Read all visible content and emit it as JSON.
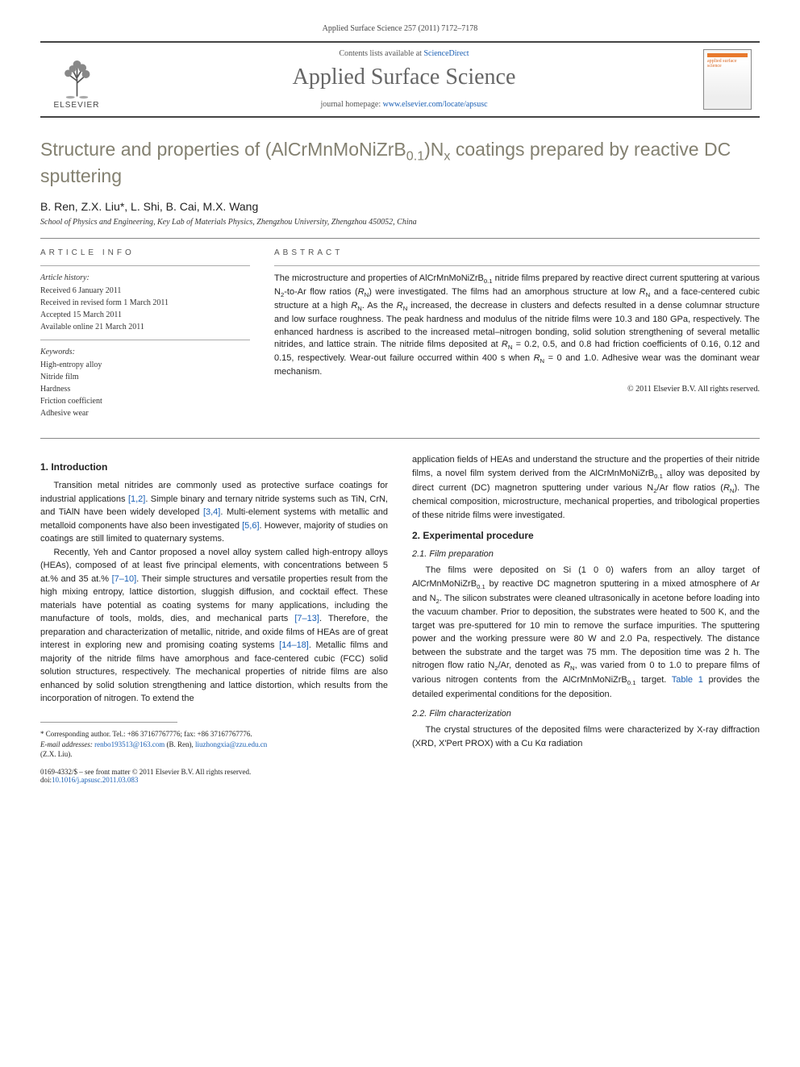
{
  "header": {
    "citation": "Applied Surface Science 257 (2011) 7172–7178",
    "contents_prefix": "Contents lists available at ",
    "contents_link": "ScienceDirect",
    "journal": "Applied Surface Science",
    "homepage_prefix": "journal homepage: ",
    "homepage_url": "www.elsevier.com/locate/apsusc",
    "publisher": "ELSEVIER",
    "cover_text": "applied surface science"
  },
  "title_html": "Structure and properties of (AlCrMnMoNiZrB<sub>0.1</sub>)N<sub>x</sub> coatings prepared by reactive DC sputtering",
  "authors": "B. Ren, Z.X. Liu*, L. Shi, B. Cai, M.X. Wang",
  "affiliation": "School of Physics and Engineering, Key Lab of Materials Physics, Zhengzhou University, Zhengzhou 450052, China",
  "article_info": {
    "label": "article info",
    "history_heading": "Article history:",
    "received": "Received 6 January 2011",
    "revised": "Received in revised form 1 March 2011",
    "accepted": "Accepted 15 March 2011",
    "online": "Available online 21 March 2011",
    "keywords_heading": "Keywords:",
    "keywords": [
      "High-entropy alloy",
      "Nitride film",
      "Hardness",
      "Friction coefficient",
      "Adhesive wear"
    ]
  },
  "abstract": {
    "label": "abstract",
    "text_html": "The microstructure and properties of AlCrMnMoNiZrB<sub>0.1</sub> nitride films prepared by reactive direct current sputtering at various N<sub>2</sub>-to-Ar flow ratios (<i>R</i><sub>N</sub>) were investigated. The films had an amorphous structure at low <i>R</i><sub>N</sub> and a face-centered cubic structure at a high <i>R</i><sub>N</sub>. As the <i>R</i><sub>N</sub> increased, the decrease in clusters and defects resulted in a dense columnar structure and low surface roughness. The peak hardness and modulus of the nitride films were 10.3 and 180 GPa, respectively. The enhanced hardness is ascribed to the increased metal–nitrogen bonding, solid solution strengthening of several metallic nitrides, and lattice strain. The nitride films deposited at <i>R</i><sub>N</sub> = 0.2, 0.5, and 0.8 had friction coefficients of 0.16, 0.12 and 0.15, respectively. Wear-out failure occurred within 400 s when <i>R</i><sub>N</sub> = 0 and 1.0. Adhesive wear was the dominant wear mechanism.",
    "copyright": "© 2011 Elsevier B.V. All rights reserved."
  },
  "body": {
    "sec1": "1. Introduction",
    "p1_html": "Transition metal nitrides are commonly used as protective surface coatings for industrial applications <a href='#'>[1,2]</a>. Simple binary and ternary nitride systems such as TiN, CrN, and TiAlN have been widely developed <a href='#'>[3,4]</a>. Multi-element systems with metallic and metalloid components have also been investigated <a href='#'>[5,6]</a>. However, majority of studies on coatings are still limited to quaternary systems.",
    "p2_html": "Recently, Yeh and Cantor proposed a novel alloy system called high-entropy alloys (HEAs), composed of at least five principal elements, with concentrations between 5 at.% and 35 at.% <a href='#'>[7–10]</a>. Their simple structures and versatile properties result from the high mixing entropy, lattice distortion, sluggish diffusion, and cocktail effect. These materials have potential as coating systems for many applications, including the manufacture of tools, molds, dies, and mechanical parts <a href='#'>[7–13]</a>. Therefore, the preparation and characterization of metallic, nitride, and oxide films of HEAs are of great interest in exploring new and promising coating systems <a href='#'>[14–18]</a>. Metallic films and majority of the nitride films have amorphous and face-centered cubic (FCC) solid solution structures, respectively. The mechanical properties of nitride films are also enhanced by solid solution strengthening and lattice distortion, which results from the incorporation of nitrogen. To extend the",
    "p3_html": "application fields of HEAs and understand the structure and the properties of their nitride films, a novel film system derived from the AlCrMnMoNiZrB<sub>0.1</sub> alloy was deposited by direct current (DC) magnetron sputtering under various N<sub>2</sub>/Ar flow ratios (<i>R</i><sub>N</sub>). The chemical composition, microstructure, mechanical properties, and tribological properties of these nitride films were investigated.",
    "sec2": "2. Experimental procedure",
    "sec21": "2.1. Film preparation",
    "p4_html": "The films were deposited on Si (1 0 0) wafers from an alloy target of AlCrMnMoNiZrB<sub>0.1</sub> by reactive DC magnetron sputtering in a mixed atmosphere of Ar and N<sub>2</sub>. The silicon substrates were cleaned ultrasonically in acetone before loading into the vacuum chamber. Prior to deposition, the substrates were heated to 500 K, and the target was pre-sputtered for 10 min to remove the surface impurities. The sputtering power and the working pressure were 80 W and 2.0 Pa, respectively. The distance between the substrate and the target was 75 mm. The deposition time was 2 h. The nitrogen flow ratio N<sub>2</sub>/Ar, denoted as <i>R</i><sub>N</sub>, was varied from 0 to 1.0 to prepare films of various nitrogen contents from the AlCrMnMoNiZrB<sub>0.1</sub> target. <a href='#'>Table 1</a> provides the detailed experimental conditions for the deposition.",
    "sec22": "2.2. Film characterization",
    "p5_html": "The crystal structures of the deposited films were characterized by X-ray diffraction (XRD, X'Pert PROX) with a Cu Kα radiation"
  },
  "footnote": {
    "corr": "* Corresponding author. Tel.: +86 37167767776; fax: +86 37167767776.",
    "emails_label": "E-mail addresses:",
    "email1": "renbo193513@163.com",
    "email1_who": " (B. Ren), ",
    "email2": "liuzhongxia@zzu.edu.cn",
    "email2_who": "(Z.X. Liu)."
  },
  "doi": {
    "line1": "0169-4332/$ – see front matter © 2011 Elsevier B.V. All rights reserved.",
    "line2_prefix": "doi:",
    "doi": "10.1016/j.apsusc.2011.03.083"
  },
  "colors": {
    "link": "#1a5fb4",
    "title": "#838070",
    "accent": "#e8792d"
  }
}
